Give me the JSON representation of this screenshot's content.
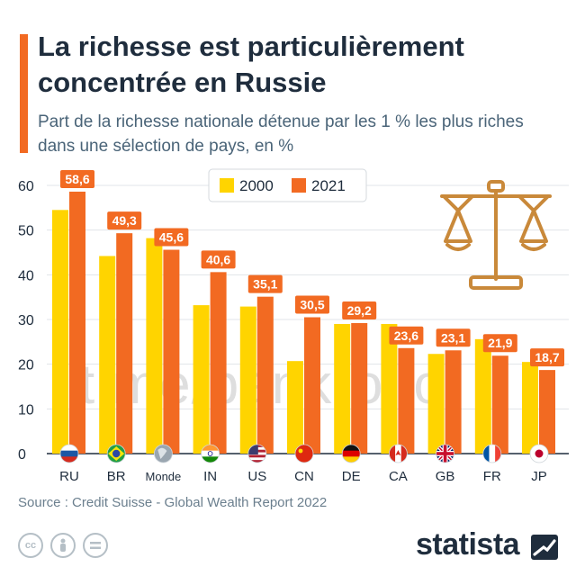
{
  "header": {
    "title": "La richesse est particulièrement concentrée en Russie",
    "subtitle": "Part de la richesse nationale détenue par les 1 % les plus riches dans une sélection de pays, en %"
  },
  "source": "Source : Credit Suisse - Global Wealth Report 2022",
  "brand": "statista",
  "watermark": "t.me/bankro.lo",
  "colors": {
    "accent": "#f26a22",
    "series_2000": "#ffd400",
    "series_2021": "#f26a22",
    "title": "#1f2d3d"
  },
  "icons": [
    "scales-icon",
    "cc-icon",
    "person-icon",
    "equals-icon",
    "statista-logo-icon"
  ],
  "chart_data": {
    "type": "bar",
    "categories": [
      "RU",
      "BR",
      "Monde",
      "IN",
      "US",
      "CN",
      "DE",
      "CA",
      "GB",
      "FR",
      "JP"
    ],
    "category_flags": [
      "flag-ru",
      "flag-br",
      "globe",
      "flag-in",
      "flag-us",
      "flag-cn",
      "flag-de",
      "flag-ca",
      "flag-gb",
      "flag-fr",
      "flag-jp"
    ],
    "series": [
      {
        "name": "2000",
        "color": "#ffd400",
        "values": [
          54.5,
          44.2,
          48.2,
          33.2,
          32.9,
          20.7,
          29.0,
          29.0,
          22.3,
          25.6,
          20.5
        ]
      },
      {
        "name": "2021",
        "color": "#f26a22",
        "values": [
          58.6,
          49.3,
          45.6,
          40.6,
          35.1,
          30.5,
          29.2,
          23.6,
          23.1,
          21.9,
          18.7
        ]
      }
    ],
    "data_labels": [
      "58,6",
      "49,3",
      "45,6",
      "40,6",
      "35,1",
      "30,5",
      "29,2",
      "23,6",
      "23,1",
      "21,9",
      "18,7"
    ],
    "yticks": [
      "0",
      "10",
      "20",
      "30",
      "40",
      "50",
      "60"
    ],
    "ylim": [
      0,
      60
    ],
    "legend_position": "top-center",
    "grid": true
  }
}
